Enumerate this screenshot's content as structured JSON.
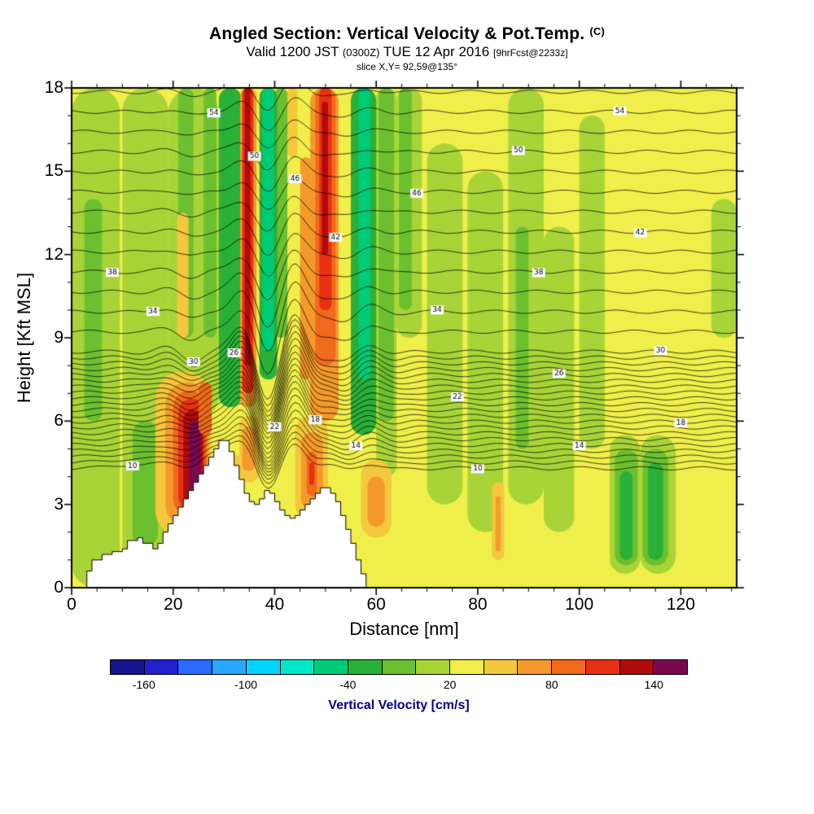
{
  "header": {
    "title_main": "Angled Section: Vertical Velocity & Pot.Temp.",
    "title_unit": "(C)",
    "valid_prefix": "Valid 1200 JST",
    "valid_z": "(0300Z)",
    "valid_date": "TUE 12 Apr 2016",
    "forecast_tag": "[9hrFcst@2233z]",
    "slice_label": "slice X,Y= 92,59@135°"
  },
  "chart_data": {
    "type": "heatmap",
    "title": "Angled Section: Vertical Velocity & Pot.Temp. (C)",
    "subtitle": "Valid 1200 JST (0300Z) TUE 12 Apr 2016 [9hrFcst@2233z]",
    "slice": "slice X,Y= 92,59@135°",
    "xlabel": "Distance [nm]",
    "ylabel": "Height [Kft MSL]",
    "xlim": [
      0,
      131
    ],
    "ylim": [
      0,
      18
    ],
    "xticks": [
      0,
      20,
      40,
      60,
      80,
      100,
      120
    ],
    "x_minor_step": 5,
    "yticks": [
      0,
      3,
      6,
      9,
      12,
      15,
      18
    ],
    "y_minor_step": 1,
    "fill_field": "vertical velocity filled contours",
    "line_field": "potential temperature line contours",
    "value_range": [
      -180,
      160
    ],
    "value_step": 20,
    "background_value": 30,
    "colorbar": {
      "label": "Vertical Velocity [cm/s]",
      "label_color": "#00008b",
      "tick_values": [
        -160,
        -100,
        -40,
        20,
        80,
        140
      ],
      "colors": [
        "#14148c",
        "#2222cc",
        "#2a6aff",
        "#2aa8ff",
        "#00d4ff",
        "#00e8c8",
        "#00cc78",
        "#2ab038",
        "#6cc030",
        "#a8d438",
        "#f0ee4a",
        "#f4c83c",
        "#f49a2c",
        "#f06a1c",
        "#e83014",
        "#b00c0c",
        "#7a0850"
      ]
    },
    "velocity_features": [
      {
        "x0": 0,
        "x1": 9.5,
        "y0": 0,
        "y1": 18,
        "v": 10
      },
      {
        "x0": 10,
        "x1": 19,
        "y0": 0,
        "y1": 18,
        "v": 10
      },
      {
        "x0": 19,
        "x1": 29,
        "y0": 6,
        "y1": 18,
        "v": 10
      },
      {
        "x0": 60,
        "x1": 64,
        "y0": 4,
        "y1": 18,
        "v": 10
      },
      {
        "x0": 64,
        "x1": 69,
        "y0": 9,
        "y1": 18,
        "v": 10
      },
      {
        "x0": 70,
        "x1": 77,
        "y0": 3,
        "y1": 16,
        "v": 10
      },
      {
        "x0": 78,
        "x1": 85,
        "y0": 2,
        "y1": 15,
        "v": 10
      },
      {
        "x0": 86,
        "x1": 93,
        "y0": 3,
        "y1": 18,
        "v": 10
      },
      {
        "x0": 93,
        "x1": 99,
        "y0": 2,
        "y1": 13,
        "v": 10
      },
      {
        "x0": 100,
        "x1": 105,
        "y0": 5,
        "y1": 17,
        "v": 10
      },
      {
        "x0": 106,
        "x1": 112,
        "y0": 0.5,
        "y1": 5.5,
        "v": 10
      },
      {
        "x0": 112,
        "x1": 119,
        "y0": 0.5,
        "y1": 5.5,
        "v": 10
      },
      {
        "x0": 126,
        "x1": 131,
        "y0": 9,
        "y1": 14,
        "v": 10
      },
      {
        "x0": 2.5,
        "x1": 6,
        "y0": 6,
        "y1": 14,
        "v": -10
      },
      {
        "x0": 12,
        "x1": 17,
        "y0": 1.5,
        "y1": 6,
        "v": -10
      },
      {
        "x0": 21,
        "x1": 24,
        "y0": 9,
        "y1": 18,
        "v": -10
      },
      {
        "x0": 26,
        "x1": 28.5,
        "y0": 9,
        "y1": 18,
        "v": -10
      },
      {
        "x0": 40,
        "x1": 42.5,
        "y0": 9,
        "y1": 18,
        "v": -10
      },
      {
        "x0": 60.5,
        "x1": 63.5,
        "y0": 6,
        "y1": 18,
        "v": -10
      },
      {
        "x0": 64.5,
        "x1": 67,
        "y0": 10,
        "y1": 18,
        "v": -10
      },
      {
        "x0": 87.5,
        "x1": 90,
        "y0": 5,
        "y1": 13,
        "v": -10
      },
      {
        "x0": 107,
        "x1": 111.5,
        "y0": 0.8,
        "y1": 5,
        "v": -10
      },
      {
        "x0": 112.5,
        "x1": 117.5,
        "y0": 0.8,
        "y1": 5,
        "v": -10
      },
      {
        "x0": 29,
        "x1": 33.5,
        "y0": 6.5,
        "y1": 18,
        "v": -30
      },
      {
        "x0": 55,
        "x1": 60,
        "y0": 5.5,
        "y1": 18,
        "v": -30
      },
      {
        "x0": 56.5,
        "x1": 58.8,
        "y0": 7.5,
        "y1": 18,
        "v": -50
      },
      {
        "x0": 37,
        "x1": 40.5,
        "y0": 7.5,
        "y1": 18,
        "v": -30
      },
      {
        "x0": 37.6,
        "x1": 39.8,
        "y0": 8.5,
        "y1": 18,
        "v": -50
      },
      {
        "x0": 108,
        "x1": 110.5,
        "y0": 1,
        "y1": 4.2,
        "v": -30
      },
      {
        "x0": 113.5,
        "x1": 116.5,
        "y0": 1,
        "y1": 4.5,
        "v": -30
      },
      {
        "x0": 20.8,
        "x1": 23,
        "y0": 9,
        "y1": 13.5,
        "v": 50
      },
      {
        "x0": 42.5,
        "x1": 44.5,
        "y0": 15.5,
        "y1": 18,
        "v": 50
      },
      {
        "x0": 33.2,
        "x1": 36.4,
        "y0": 6.5,
        "y1": 18,
        "v": 70
      },
      {
        "x0": 33.6,
        "x1": 35.8,
        "y0": 7,
        "y1": 18,
        "v": 110
      },
      {
        "x0": 34.1,
        "x1": 35.2,
        "y0": 8,
        "y1": 18,
        "v": 130
      },
      {
        "x0": 45,
        "x1": 47.3,
        "y0": 7.5,
        "y1": 15.5,
        "v": 70
      },
      {
        "x0": 47,
        "x1": 52.6,
        "y0": 6,
        "y1": 18,
        "v": 70
      },
      {
        "x0": 48,
        "x1": 52,
        "y0": 8,
        "y1": 18,
        "v": 90
      },
      {
        "x0": 48.8,
        "x1": 51.2,
        "y0": 10,
        "y1": 18,
        "v": 110
      },
      {
        "x0": 49.3,
        "x1": 50.5,
        "y0": 12,
        "y1": 17.5,
        "v": 130
      },
      {
        "x0": 16.5,
        "x1": 27.5,
        "y0": 1.8,
        "y1": 7.8,
        "v": 50
      },
      {
        "x0": 18.5,
        "x1": 27,
        "y0": 2.2,
        "y1": 7.4,
        "v": 70
      },
      {
        "x0": 20,
        "x1": 26.6,
        "y0": 2.6,
        "y1": 7.1,
        "v": 90
      },
      {
        "x0": 21,
        "x1": 26.2,
        "y0": 2.8,
        "y1": 6.8,
        "v": 110
      },
      {
        "x0": 22,
        "x1": 25.8,
        "y0": 3,
        "y1": 6.4,
        "v": 130
      },
      {
        "x0": 23.2,
        "x1": 25.4,
        "y0": 3.3,
        "y1": 6,
        "v": 150
      },
      {
        "x0": 25,
        "x1": 27.6,
        "y0": 5.5,
        "y1": 7.4,
        "v": 90
      },
      {
        "x0": 31,
        "x1": 33.2,
        "y0": 3.2,
        "y1": 4.8,
        "v": 50
      },
      {
        "x0": 33,
        "x1": 37,
        "y0": 3.8,
        "y1": 6.2,
        "v": 50
      },
      {
        "x0": 33.6,
        "x1": 36.2,
        "y0": 4.2,
        "y1": 5.8,
        "v": 70
      },
      {
        "x0": 44,
        "x1": 50.5,
        "y0": 2.4,
        "y1": 6.2,
        "v": 50
      },
      {
        "x0": 45.2,
        "x1": 49.5,
        "y0": 2.8,
        "y1": 5.6,
        "v": 70
      },
      {
        "x0": 46.3,
        "x1": 48.3,
        "y0": 3.3,
        "y1": 4.9,
        "v": 90
      },
      {
        "x0": 46.8,
        "x1": 47.8,
        "y0": 3.7,
        "y1": 4.5,
        "v": 110
      },
      {
        "x0": 57,
        "x1": 63,
        "y0": 1.8,
        "y1": 4.6,
        "v": 50
      },
      {
        "x0": 58.3,
        "x1": 61.7,
        "y0": 2.2,
        "y1": 4,
        "v": 70
      },
      {
        "x0": 82.8,
        "x1": 85.2,
        "y0": 1,
        "y1": 3.8,
        "v": 50
      },
      {
        "x0": 83.5,
        "x1": 84.5,
        "y0": 1.3,
        "y1": 3.3,
        "v": 70
      }
    ],
    "terrain_profile": [
      [
        2,
        0
      ],
      [
        3,
        0.6
      ],
      [
        4,
        1.0
      ],
      [
        6,
        1.2
      ],
      [
        8,
        1.3
      ],
      [
        10,
        1.4
      ],
      [
        11,
        1.7
      ],
      [
        13,
        1.8
      ],
      [
        14,
        1.6
      ],
      [
        16,
        1.4
      ],
      [
        17,
        1.6
      ],
      [
        18,
        2.0
      ],
      [
        19,
        2.3
      ],
      [
        20,
        2.6
      ],
      [
        21,
        2.9
      ],
      [
        22,
        3.2
      ],
      [
        23,
        3.5
      ],
      [
        24,
        3.8
      ],
      [
        25,
        4.1
      ],
      [
        26,
        4.4
      ],
      [
        27,
        4.7
      ],
      [
        28,
        5.0
      ],
      [
        29,
        5.3
      ],
      [
        30,
        5.3
      ],
      [
        31,
        4.9
      ],
      [
        32,
        4.4
      ],
      [
        33,
        3.9
      ],
      [
        34,
        3.4
      ],
      [
        35,
        3.1
      ],
      [
        36,
        3.0
      ],
      [
        37,
        3.2
      ],
      [
        38,
        3.5
      ],
      [
        39,
        3.4
      ],
      [
        40,
        3.1
      ],
      [
        41,
        2.8
      ],
      [
        42,
        2.6
      ],
      [
        43,
        2.5
      ],
      [
        44,
        2.6
      ],
      [
        45,
        2.8
      ],
      [
        46,
        3.0
      ],
      [
        47,
        3.2
      ],
      [
        48,
        3.4
      ],
      [
        49,
        3.6
      ],
      [
        50,
        3.6
      ],
      [
        51,
        3.4
      ],
      [
        52,
        3.1
      ],
      [
        53,
        2.6
      ],
      [
        54,
        2.1
      ],
      [
        55,
        1.6
      ],
      [
        56,
        1.0
      ],
      [
        57,
        0.5
      ],
      [
        58,
        0
      ]
    ],
    "theta_contours": {
      "labeled_values": [
        10,
        14,
        18,
        22,
        26,
        30,
        34,
        38,
        42,
        46,
        50,
        54
      ],
      "levels": [
        {
          "v": 10,
          "h": 4.3
        },
        {
          "v": 11,
          "h": 4.51
        },
        {
          "v": 12,
          "h": 4.72
        },
        {
          "v": 13,
          "h": 4.93
        },
        {
          "v": 14,
          "h": 5.14
        },
        {
          "v": 15,
          "h": 5.35
        },
        {
          "v": 16,
          "h": 5.56
        },
        {
          "v": 17,
          "h": 5.77
        },
        {
          "v": 18,
          "h": 5.98
        },
        {
          "v": 19,
          "h": 6.19
        },
        {
          "v": 20,
          "h": 6.4
        },
        {
          "v": 21,
          "h": 6.61
        },
        {
          "v": 22,
          "h": 6.82
        },
        {
          "v": 23,
          "h": 7.03
        },
        {
          "v": 24,
          "h": 7.24
        },
        {
          "v": 25,
          "h": 7.45
        },
        {
          "v": 26,
          "h": 7.66
        },
        {
          "v": 27,
          "h": 7.87
        },
        {
          "v": 28,
          "h": 8.08
        },
        {
          "v": 29,
          "h": 8.29
        },
        {
          "v": 30,
          "h": 8.5
        },
        {
          "v": 32,
          "h": 9.22
        },
        {
          "v": 34,
          "h": 9.94
        },
        {
          "v": 36,
          "h": 10.66
        },
        {
          "v": 38,
          "h": 11.38
        },
        {
          "v": 40,
          "h": 12.1
        },
        {
          "v": 42,
          "h": 12.82
        },
        {
          "v": 44,
          "h": 13.54
        },
        {
          "v": 46,
          "h": 14.26
        },
        {
          "v": 48,
          "h": 14.98
        },
        {
          "v": 50,
          "h": 15.7
        },
        {
          "v": 52,
          "h": 16.42
        },
        {
          "v": 54,
          "h": 17.14
        },
        {
          "v": 56,
          "h": 17.86
        }
      ]
    }
  }
}
